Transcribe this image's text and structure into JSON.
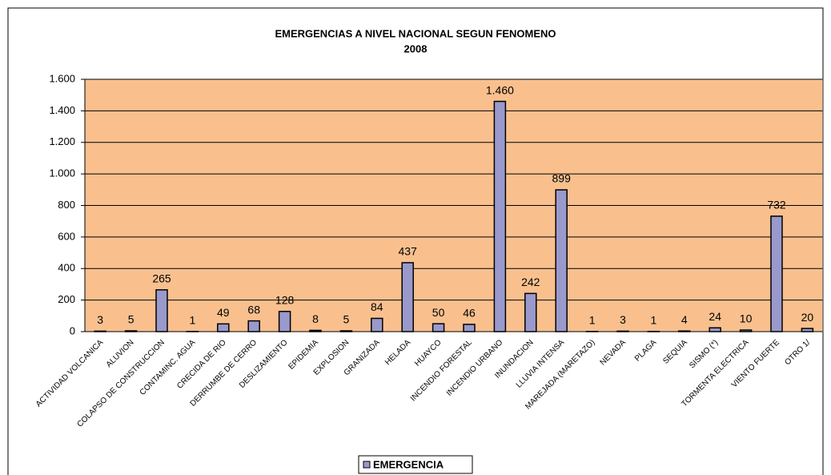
{
  "chart_data": {
    "type": "bar",
    "title": "EMERGENCIAS A NIVEL NACIONAL SEGUN FENOMENO",
    "subtitle": "2008",
    "categories": [
      "ACTIVIDAD VOLCANICA",
      "ALUVION",
      "COLAPSO DE CONSTRUCCION",
      "CONTAMINC. AGUA",
      "CRECIDA DE RIO",
      "DERRUMBE DE CERRO",
      "DESLIZAMIENTO",
      "EPIDEMIA",
      "EXPLOSION",
      "GRANIZADA",
      "HELADA",
      "HUAYCO",
      "INCENDIO FORESTAL",
      "INCENDIO URBANO",
      "INUNDACION",
      "LLUVIA INTENSA",
      "MAREJADA (MARETAZO)",
      "NEVADA",
      "PLAGA",
      "SEQUIA",
      "SISMO (*)",
      "TORMENTA ELECTRICA",
      "VIENTO FUERTE",
      "OTRO 1/"
    ],
    "series": [
      {
        "name": "EMERGENCIA",
        "color": "#9999cc",
        "values": [
          3,
          5,
          265,
          1,
          49,
          68,
          128,
          8,
          5,
          84,
          437,
          50,
          46,
          1460,
          242,
          899,
          1,
          3,
          1,
          4,
          24,
          10,
          732,
          20
        ],
        "value_labels": [
          "3",
          "5",
          "265",
          "1",
          "49",
          "68",
          "128",
          "8",
          "5",
          "84",
          "437",
          "50",
          "46",
          "1.460",
          "242",
          "899",
          "1",
          "3",
          "1",
          "4",
          "24",
          "10",
          "732",
          "20"
        ]
      }
    ],
    "ylim": [
      0,
      1600
    ],
    "yticks": [
      0,
      200,
      400,
      600,
      800,
      {
        "value": 1000,
        "label": "1.000"
      },
      {
        "value": 1200,
        "label": "1.200"
      },
      {
        "value": 1400,
        "label": "1.400"
      },
      {
        "value": 1600,
        "label": "1.600"
      }
    ],
    "grid": true,
    "plot_background": "#f9c08e",
    "legend": "bottom"
  }
}
